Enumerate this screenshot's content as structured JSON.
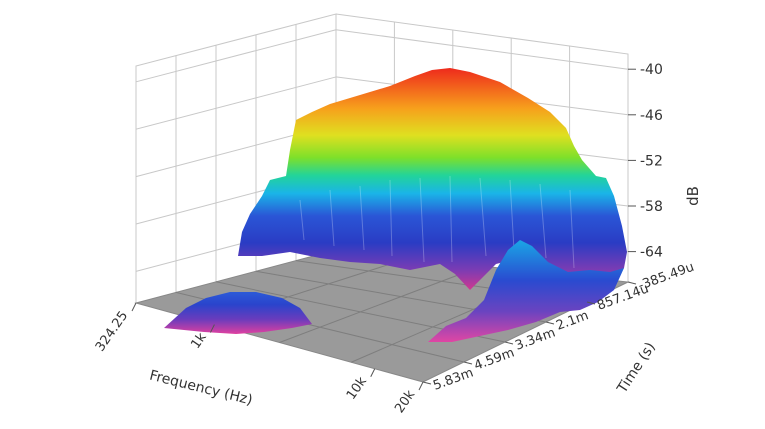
{
  "chart_data": {
    "type": "waterfall-3d-surface",
    "axes": {
      "frequency": {
        "label": "Frequency (Hz)",
        "scale": "log",
        "tick_labels": [
          "324.25",
          "1k",
          "10k",
          "20k"
        ],
        "range": [
          324.25,
          20000
        ]
      },
      "time": {
        "label": "Time (s)",
        "tick_labels": [
          "-385.49u",
          "857.14u",
          "2.1m",
          "3.34m",
          "4.59m",
          "5.83m"
        ],
        "range_s": [
          -0.00038549,
          0.00583
        ]
      },
      "level": {
        "label": "dB",
        "tick_labels": [
          "-40",
          "-46",
          "-52",
          "-58",
          "-64"
        ],
        "range": [
          -68,
          -38
        ]
      }
    },
    "surface": {
      "peak_db": -39,
      "peak_frequency_hz": 3000,
      "peak_time_s": -0.00038549,
      "colormap": [
        "#e0338a",
        "#5a3fb0",
        "#2740c8",
        "#1aa6e6",
        "#22d39a",
        "#7ee02a",
        "#e8e020",
        "#f7a01c",
        "#ee2a1c"
      ]
    },
    "grid": true,
    "legend": "none"
  }
}
